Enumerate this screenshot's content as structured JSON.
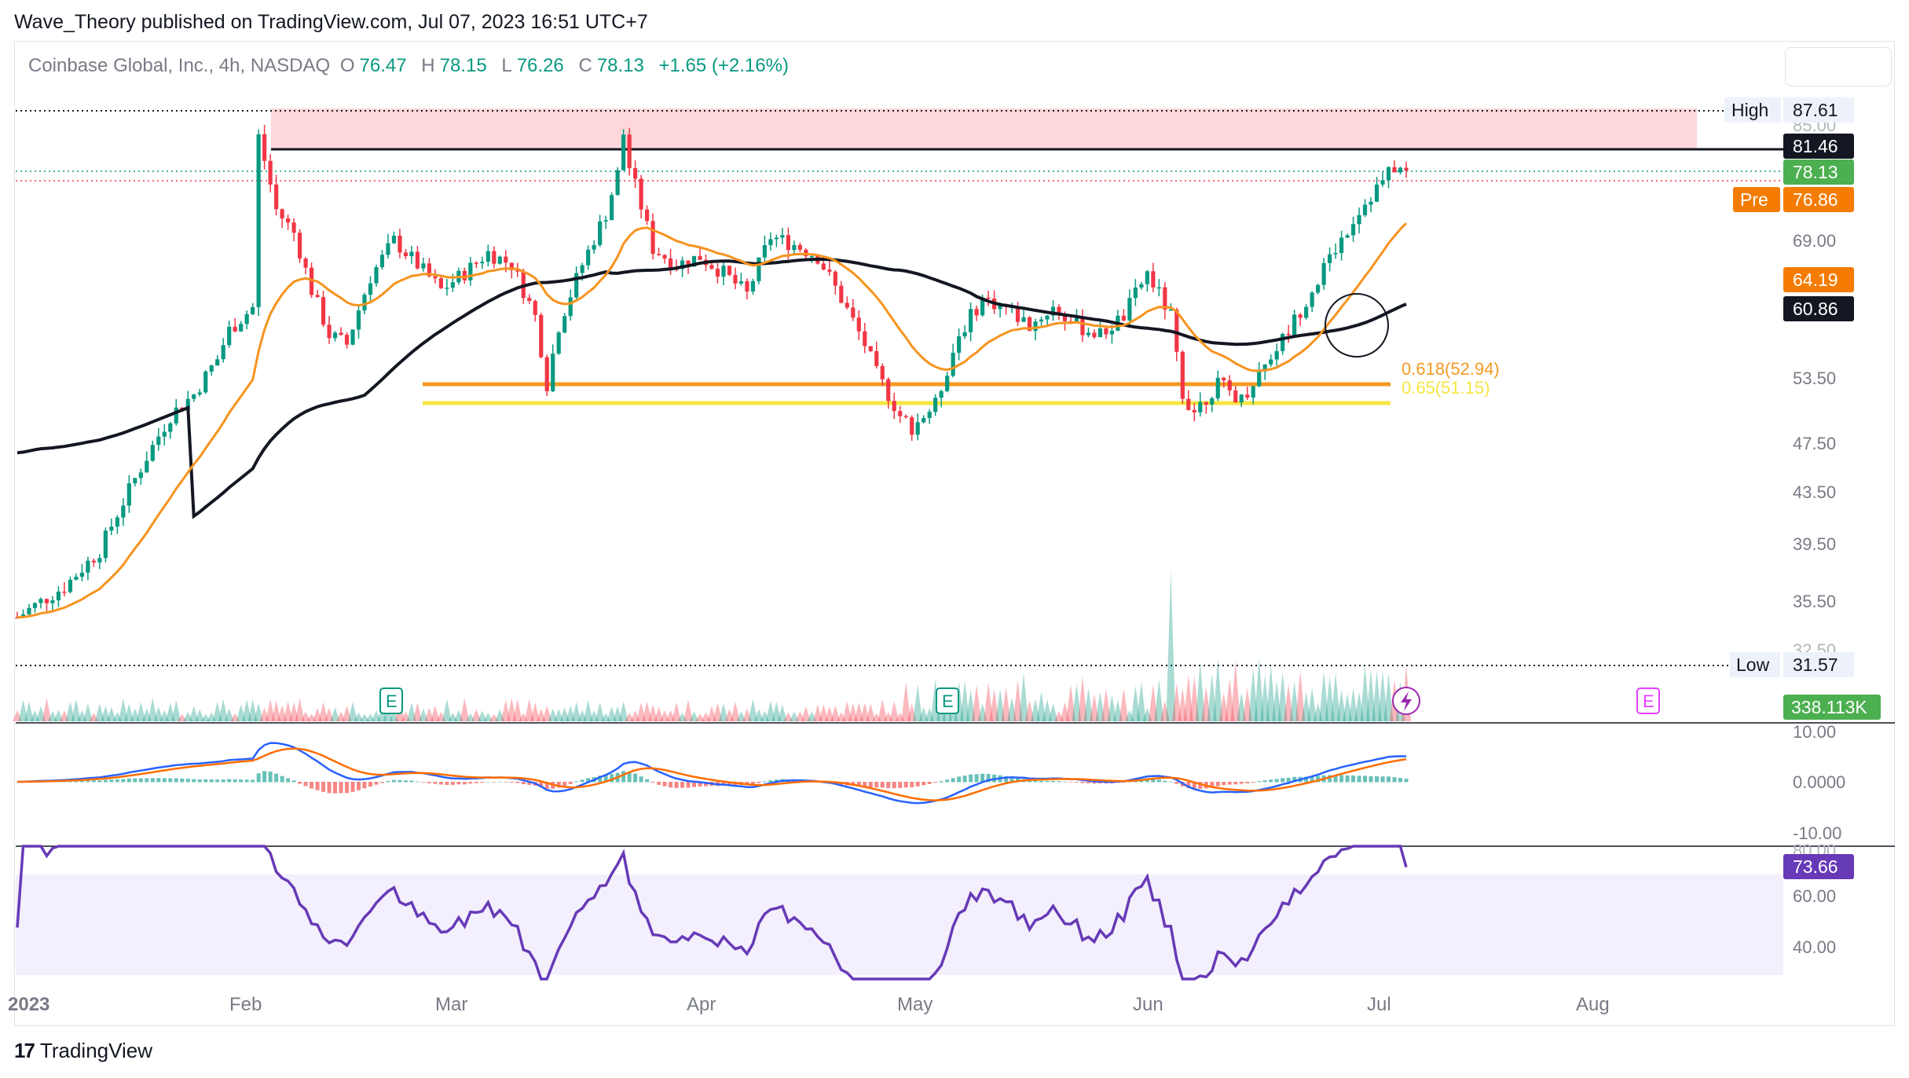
{
  "header": {
    "publisher": "Wave_Theory published on TradingView.com, Jul 07, 2023 16:51 UTC+7"
  },
  "legend": {
    "symbol": "Coinbase Global, Inc., 4h, NASDAQ",
    "open_label": "O",
    "open": "76.47",
    "high_label": "H",
    "high": "78.15",
    "low_label": "L",
    "low": "76.26",
    "close_label": "C",
    "close": "78.13",
    "change": "+1.65 (+2.16%)"
  },
  "footer": {
    "logo_mark": "17",
    "brand": "TradingView"
  },
  "colors": {
    "up": "#089981",
    "down": "#f23645",
    "sma200": "#131722",
    "ema50": "#f7931e",
    "fib_orange": "#f59a23",
    "fib_yellow": "#f5e642",
    "macd": "#2962ff",
    "signal": "#ff6d00",
    "rsi": "#673ab7",
    "zone": "#fdd7da"
  },
  "price_axis": {
    "ticks": [
      "85.00",
      "69.00",
      "53.50",
      "47.50",
      "43.50",
      "39.50",
      "35.50",
      "32.50"
    ],
    "high_label": "High",
    "high_value": "87.61",
    "low_label": "Low",
    "low_value": "31.57",
    "resistance_value": "81.46",
    "last_value": "78.13",
    "pre_label": "Pre",
    "pre_value": "76.86",
    "ema_value": "64.19",
    "sma_value": "60.86",
    "volume_value": "338.113K"
  },
  "fib": {
    "level1_label": "0.618(52.94)",
    "level2_label": "0.65(51.15)"
  },
  "earnings_marker": "E",
  "macd_axis": {
    "ticks": [
      "10.00",
      "0.0000",
      "-10.00"
    ]
  },
  "rsi_axis": {
    "ticks": [
      "80.00",
      "60.00",
      "40.00"
    ],
    "value": "73.66"
  },
  "time_axis": {
    "labels": [
      "2023",
      "Feb",
      "Mar",
      "Apr",
      "May",
      "Jun",
      "Jul",
      "Aug"
    ]
  },
  "chart_data": {
    "type": "candlestick",
    "symbol": "Coinbase Global, Inc., 4h, NASDAQ",
    "timeframe": "4h",
    "ohlc_last": {
      "open": 76.47,
      "high": 78.15,
      "low": 76.26,
      "close": 78.13,
      "change": 1.65,
      "change_pct": 2.16
    },
    "price_path": [
      [
        0,
        34.5
      ],
      [
        8,
        36.5
      ],
      [
        14,
        39.0
      ],
      [
        20,
        44.5
      ],
      [
        26,
        50.0
      ],
      [
        30,
        52.0
      ],
      [
        34,
        55.5
      ],
      [
        36,
        58.5
      ],
      [
        40,
        61.0
      ],
      [
        41,
        83.5
      ],
      [
        44,
        73.0
      ],
      [
        47,
        70.0
      ],
      [
        50,
        63.0
      ],
      [
        53,
        58.0
      ],
      [
        56,
        57.0
      ],
      [
        60,
        64.5
      ],
      [
        64,
        69.0
      ],
      [
        68,
        66.0
      ],
      [
        72,
        63.0
      ],
      [
        76,
        65.0
      ],
      [
        80,
        67.5
      ],
      [
        84,
        66.0
      ],
      [
        88,
        60.0
      ],
      [
        90,
        53.0
      ],
      [
        92,
        59.0
      ],
      [
        96,
        66.0
      ],
      [
        100,
        72.5
      ],
      [
        102,
        78.0
      ],
      [
        103,
        84.0
      ],
      [
        104,
        79.0
      ],
      [
        108,
        68.0
      ],
      [
        112,
        66.0
      ],
      [
        116,
        67.0
      ],
      [
        120,
        65.0
      ],
      [
        124,
        62.5
      ],
      [
        128,
        69.5
      ],
      [
        132,
        68.5
      ],
      [
        136,
        67.0
      ],
      [
        140,
        62.0
      ],
      [
        144,
        57.0
      ],
      [
        146,
        54.0
      ],
      [
        150,
        50.0
      ],
      [
        152,
        49.0
      ],
      [
        156,
        51.0
      ],
      [
        160,
        58.0
      ],
      [
        164,
        62.0
      ],
      [
        168,
        61.0
      ],
      [
        172,
        59.0
      ],
      [
        176,
        61.0
      ],
      [
        180,
        59.0
      ],
      [
        184,
        58.0
      ],
      [
        188,
        60.0
      ],
      [
        192,
        65.0
      ],
      [
        196,
        60.0
      ],
      [
        198,
        52.0
      ],
      [
        200,
        50.5
      ],
      [
        204,
        53.0
      ],
      [
        208,
        51.5
      ],
      [
        212,
        55.0
      ],
      [
        216,
        58.5
      ],
      [
        220,
        63.0
      ],
      [
        224,
        68.0
      ],
      [
        228,
        73.0
      ],
      [
        232,
        77.0
      ],
      [
        234,
        79.0
      ],
      [
        236,
        78.13
      ]
    ],
    "resistance_zone": [
      81.46,
      87.61
    ],
    "high": 87.61,
    "low": 31.57,
    "last_close": 78.13,
    "premarket": 76.86,
    "ema50_last": 64.19,
    "sma200_last": 60.86,
    "fib_levels": [
      {
        "ratio": 0.618,
        "value": 52.94
      },
      {
        "ratio": 0.65,
        "value": 51.15
      }
    ],
    "volume_last": "338.113K",
    "macd_range": [
      -10,
      10
    ],
    "rsi_last": 73.66,
    "x_labels": [
      "2023",
      "Feb",
      "Mar",
      "Apr",
      "May",
      "Jun",
      "Jul",
      "Aug"
    ]
  }
}
